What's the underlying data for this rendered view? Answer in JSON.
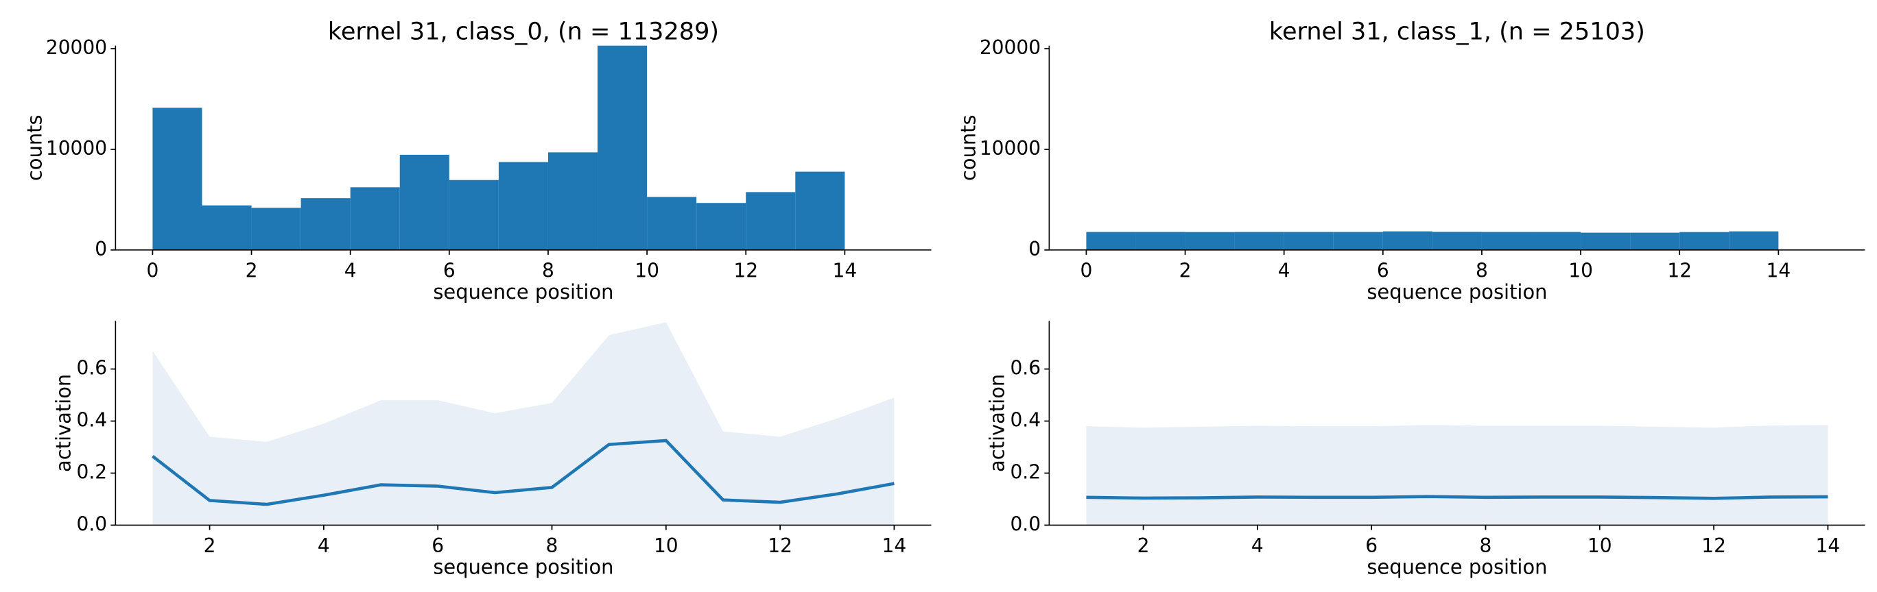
{
  "chart_data": [
    {
      "type": "histogram",
      "title": "kernel 31, class_0, (n = 113289)",
      "x_label": "sequence position",
      "y_label": "counts",
      "bins": [
        0,
        1,
        2,
        3,
        4,
        5,
        6,
        7,
        8,
        9,
        10,
        11,
        12,
        13,
        14
      ],
      "counts": [
        14130,
        4430,
        4190,
        5150,
        6230,
        9460,
        6950,
        8740,
        9700,
        20300,
        5270,
        4670,
        5750,
        7780
      ],
      "color": "#1f77b4",
      "xlim": [
        -0.75,
        15.75
      ],
      "xticks": [
        0,
        2,
        4,
        6,
        8,
        10,
        12,
        14
      ],
      "ylim": [
        0,
        20300
      ],
      "yticks": [
        0,
        10000,
        20000
      ]
    },
    {
      "type": "histogram",
      "title": "kernel 31, class_1, (n = 25103)",
      "x_label": "sequence position",
      "y_label": "counts",
      "bins": [
        0,
        1,
        2,
        3,
        4,
        5,
        6,
        7,
        8,
        9,
        10,
        11,
        12,
        13,
        14
      ],
      "counts": [
        1790,
        1790,
        1780,
        1790,
        1790,
        1790,
        1850,
        1800,
        1790,
        1790,
        1720,
        1720,
        1780,
        1850
      ],
      "color": "#1f77b4",
      "xlim": [
        -0.75,
        15.75
      ],
      "xticks": [
        0,
        2,
        4,
        6,
        8,
        10,
        12,
        14
      ],
      "ylim": [
        0,
        20300
      ],
      "yticks": [
        0,
        10000,
        20000
      ]
    },
    {
      "type": "line",
      "x_label": "sequence position",
      "y_label": "activation",
      "x": [
        1,
        2,
        3,
        4,
        5,
        6,
        7,
        8,
        9,
        10,
        11,
        12,
        13,
        14
      ],
      "values": [
        0.265,
        0.095,
        0.08,
        0.115,
        0.155,
        0.15,
        0.125,
        0.145,
        0.31,
        0.325,
        0.097,
        0.088,
        0.12,
        0.16
      ],
      "band_upper": [
        0.67,
        0.34,
        0.32,
        0.39,
        0.48,
        0.48,
        0.43,
        0.47,
        0.73,
        0.78,
        0.36,
        0.34,
        0.41,
        0.49
      ],
      "band_lower": [
        0,
        0,
        0,
        0,
        0,
        0,
        0,
        0,
        0,
        0,
        0,
        0,
        0,
        0
      ],
      "color": "#1f77b4",
      "band_color": "#e8eff7",
      "xlim": [
        0.35,
        14.65
      ],
      "xticks": [
        2,
        4,
        6,
        8,
        10,
        12,
        14
      ],
      "ylim": [
        0,
        0.785
      ],
      "yticks": [
        {
          "value": 0,
          "label": "0.0"
        },
        0.2,
        0.4,
        0.6
      ]
    },
    {
      "type": "line",
      "x_label": "sequence position",
      "y_label": "activation",
      "x": [
        1,
        2,
        3,
        4,
        5,
        6,
        7,
        8,
        9,
        10,
        11,
        12,
        13,
        14
      ],
      "values": [
        0.107,
        0.104,
        0.105,
        0.108,
        0.107,
        0.107,
        0.11,
        0.107,
        0.108,
        0.108,
        0.106,
        0.103,
        0.108,
        0.109
      ],
      "band_upper": [
        0.38,
        0.375,
        0.378,
        0.382,
        0.38,
        0.38,
        0.385,
        0.382,
        0.382,
        0.382,
        0.378,
        0.375,
        0.383,
        0.385
      ],
      "band_lower": [
        0,
        0,
        0,
        0,
        0,
        0,
        0,
        0,
        0,
        0,
        0,
        0,
        0,
        0
      ],
      "color": "#1f77b4",
      "band_color": "#e8eff7",
      "xlim": [
        0.35,
        14.65
      ],
      "xticks": [
        2,
        4,
        6,
        8,
        10,
        12,
        14
      ],
      "ylim": [
        0,
        0.785
      ],
      "yticks": [
        {
          "value": 0,
          "label": "0.0"
        },
        0.2,
        0.4,
        0.6
      ]
    }
  ]
}
